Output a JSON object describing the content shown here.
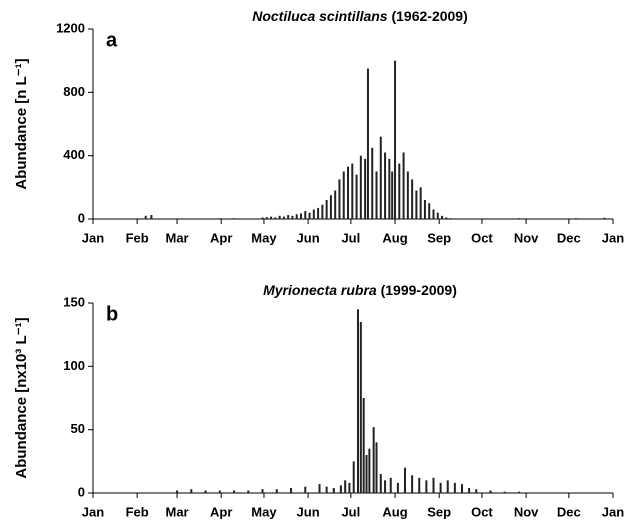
{
  "chart_data": [
    {
      "type": "bar",
      "panel": "a",
      "title": "Noctiluca scintillans",
      "title_suffix": "(1962-2009)",
      "ylabel": "Abundance [n L⁻¹]",
      "color": "#222222",
      "xlim": [
        1,
        366
      ],
      "xticks": [
        {
          "value": 1,
          "label": "Jan"
        },
        {
          "value": 32,
          "label": "Feb"
        },
        {
          "value": 60,
          "label": "Mar"
        },
        {
          "value": 91,
          "label": "Apr"
        },
        {
          "value": 121,
          "label": "May"
        },
        {
          "value": 152,
          "label": "Jun"
        },
        {
          "value": 182,
          "label": "Jul"
        },
        {
          "value": 213,
          "label": "Aug"
        },
        {
          "value": 244,
          "label": "Sep"
        },
        {
          "value": 274,
          "label": "Oct"
        },
        {
          "value": 305,
          "label": "Nov"
        },
        {
          "value": 335,
          "label": "Dec"
        },
        {
          "value": 366,
          "label": "Jan"
        }
      ],
      "ylim": [
        0,
        1200
      ],
      "yticks": [
        0,
        400,
        800,
        1200
      ],
      "x": [
        38,
        42,
        90,
        100,
        120,
        123,
        126,
        129,
        132,
        135,
        138,
        141,
        144,
        147,
        150,
        153,
        156,
        159,
        162,
        165,
        168,
        171,
        174,
        177,
        180,
        183,
        186,
        189,
        192,
        194,
        197,
        200,
        203,
        206,
        209,
        211,
        213,
        216,
        219,
        222,
        225,
        228,
        231,
        234,
        237,
        240,
        243,
        246,
        249,
        252,
        300,
        340,
        360
      ],
      "values": [
        20,
        25,
        5,
        5,
        10,
        12,
        15,
        10,
        20,
        15,
        25,
        20,
        30,
        35,
        50,
        40,
        60,
        70,
        90,
        120,
        150,
        180,
        250,
        300,
        330,
        350,
        280,
        400,
        380,
        950,
        450,
        300,
        520,
        420,
        380,
        300,
        1000,
        350,
        420,
        300,
        250,
        180,
        200,
        120,
        100,
        60,
        40,
        20,
        10,
        5,
        5,
        5,
        8
      ]
    },
    {
      "type": "bar",
      "panel": "b",
      "title": "Myrionecta rubra",
      "title_suffix": "(1999-2009)",
      "ylabel": "Abundance [nx10³ L⁻¹]",
      "color": "#222222",
      "xlim": [
        1,
        366
      ],
      "xticks": [
        {
          "value": 1,
          "label": "Jan"
        },
        {
          "value": 32,
          "label": "Feb"
        },
        {
          "value": 60,
          "label": "Mar"
        },
        {
          "value": 91,
          "label": "Apr"
        },
        {
          "value": 121,
          "label": "May"
        },
        {
          "value": 152,
          "label": "Jun"
        },
        {
          "value": 182,
          "label": "Jul"
        },
        {
          "value": 213,
          "label": "Aug"
        },
        {
          "value": 244,
          "label": "Sep"
        },
        {
          "value": 274,
          "label": "Oct"
        },
        {
          "value": 305,
          "label": "Nov"
        },
        {
          "value": 335,
          "label": "Dec"
        },
        {
          "value": 366,
          "label": "Jan"
        }
      ],
      "ylim": [
        0,
        150
      ],
      "yticks": [
        0,
        50,
        100,
        150
      ],
      "x": [
        60,
        70,
        80,
        90,
        100,
        110,
        120,
        130,
        140,
        150,
        160,
        165,
        170,
        175,
        178,
        181,
        184,
        187,
        189,
        191,
        193,
        195,
        198,
        200,
        203,
        206,
        210,
        215,
        220,
        225,
        230,
        235,
        240,
        245,
        250,
        255,
        260,
        265,
        270,
        280,
        290,
        300
      ],
      "values": [
        2,
        3,
        2,
        2,
        2,
        2,
        3,
        3,
        4,
        5,
        7,
        5,
        4,
        6,
        10,
        8,
        25,
        145,
        135,
        75,
        30,
        35,
        52,
        40,
        15,
        10,
        12,
        8,
        20,
        14,
        12,
        10,
        12,
        8,
        10,
        8,
        7,
        4,
        3,
        2,
        1,
        1
      ]
    }
  ]
}
